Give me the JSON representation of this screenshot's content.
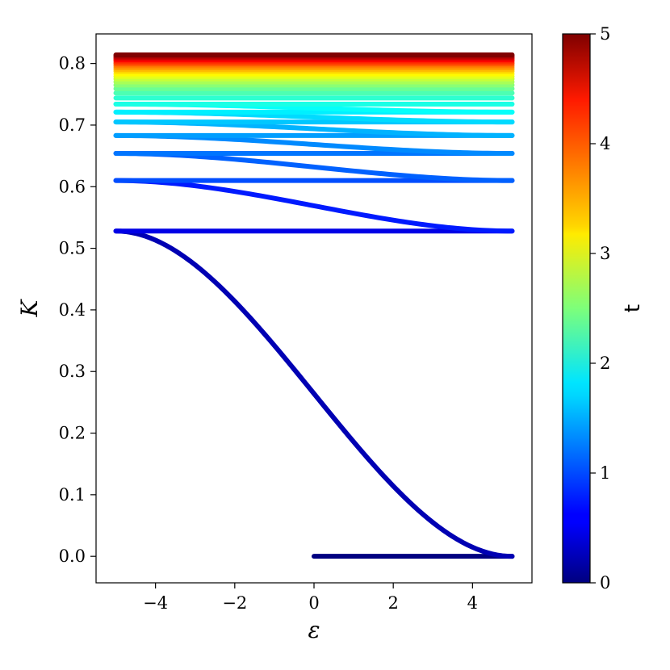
{
  "chart_data": {
    "type": "line",
    "xlabel": "ε",
    "ylabel": "K",
    "xlim": [
      -5.5,
      5.5
    ],
    "ylim": [
      -0.043,
      0.848
    ],
    "x_ticks": [
      -4,
      -2,
      0,
      2,
      4
    ],
    "x_tick_labels": [
      "−4",
      "−2",
      "0",
      "2",
      "4"
    ],
    "y_ticks": [
      0.0,
      0.1,
      0.2,
      0.3,
      0.4,
      0.5,
      0.6,
      0.7,
      0.8
    ],
    "y_tick_labels": [
      "0.0",
      "0.1",
      "0.2",
      "0.3",
      "0.4",
      "0.5",
      "0.6",
      "0.7",
      "0.8"
    ],
    "grid": false,
    "colormap": "jet",
    "colorbar": {
      "label": "t",
      "range": [
        0,
        5
      ],
      "ticks": [
        0,
        1,
        2,
        3,
        4,
        5
      ],
      "tick_labels": [
        "0",
        "1",
        "2",
        "3",
        "4",
        "5"
      ]
    },
    "series": [
      {
        "t": 0.0,
        "kind": "flat",
        "x": [
          0,
          5
        ],
        "y": [
          0.0,
          0.0
        ]
      },
      {
        "t": 0.25,
        "kind": "transition",
        "x_range": [
          -5,
          5
        ],
        "y_from": 0.528,
        "y_to": 0.0
      },
      {
        "t": 0.5,
        "kind": "flat",
        "x": [
          -5,
          5
        ],
        "y": [
          0.528,
          0.528
        ]
      },
      {
        "t": 0.75,
        "kind": "transition",
        "x_range": [
          -5,
          5
        ],
        "y_from": 0.61,
        "y_to": 0.528
      },
      {
        "t": 1.0,
        "kind": "flat",
        "x": [
          -5,
          5
        ],
        "y": [
          0.61,
          0.61
        ]
      },
      {
        "t": 1.1,
        "kind": "transition",
        "x_range": [
          -5,
          5
        ],
        "y_from": 0.654,
        "y_to": 0.61
      },
      {
        "t": 1.2,
        "kind": "flat",
        "x": [
          -5,
          5
        ],
        "y": [
          0.654,
          0.654
        ]
      },
      {
        "t": 1.3,
        "kind": "transition",
        "x_range": [
          -5,
          5
        ],
        "y_from": 0.683,
        "y_to": 0.654
      },
      {
        "t": 1.4,
        "kind": "flat",
        "x": [
          -5,
          5
        ],
        "y": [
          0.683,
          0.683
        ]
      },
      {
        "t": 1.5,
        "kind": "transition",
        "x_range": [
          -5,
          5
        ],
        "y_from": 0.705,
        "y_to": 0.683
      },
      {
        "t": 1.6,
        "kind": "flat",
        "x": [
          -5,
          5
        ],
        "y": [
          0.705,
          0.705
        ]
      },
      {
        "t": 1.7,
        "kind": "transition",
        "x_range": [
          -5,
          5
        ],
        "y_from": 0.721,
        "y_to": 0.705
      },
      {
        "t": 1.8,
        "kind": "flat",
        "x": [
          -5,
          5
        ],
        "y": [
          0.721,
          0.721
        ]
      },
      {
        "t": 1.9,
        "kind": "transition",
        "x_range": [
          -5,
          5
        ],
        "y_from": 0.734,
        "y_to": 0.721
      },
      {
        "t": 2.0,
        "kind": "flat",
        "x": [
          -5,
          5
        ],
        "y": [
          0.734,
          0.734
        ]
      },
      {
        "t": 2.1,
        "kind": "flat",
        "x": [
          -5,
          5
        ],
        "y": [
          0.744,
          0.744
        ]
      },
      {
        "t": 2.25,
        "kind": "flat",
        "x": [
          -5,
          5
        ],
        "y": [
          0.752,
          0.752
        ]
      },
      {
        "t": 2.4,
        "kind": "flat",
        "x": [
          -5,
          5
        ],
        "y": [
          0.759,
          0.759
        ]
      },
      {
        "t": 2.55,
        "kind": "flat",
        "x": [
          -5,
          5
        ],
        "y": [
          0.765,
          0.765
        ]
      },
      {
        "t": 2.7,
        "kind": "flat",
        "x": [
          -5,
          5
        ],
        "y": [
          0.77,
          0.77
        ]
      },
      {
        "t": 2.85,
        "kind": "flat",
        "x": [
          -5,
          5
        ],
        "y": [
          0.775,
          0.775
        ]
      },
      {
        "t": 3.0,
        "kind": "flat",
        "x": [
          -5,
          5
        ],
        "y": [
          0.779,
          0.779
        ]
      },
      {
        "t": 3.15,
        "kind": "flat",
        "x": [
          -5,
          5
        ],
        "y": [
          0.783,
          0.783
        ]
      },
      {
        "t": 3.3,
        "kind": "flat",
        "x": [
          -5,
          5
        ],
        "y": [
          0.787,
          0.787
        ]
      },
      {
        "t": 3.45,
        "kind": "flat",
        "x": [
          -5,
          5
        ],
        "y": [
          0.79,
          0.79
        ]
      },
      {
        "t": 3.6,
        "kind": "flat",
        "x": [
          -5,
          5
        ],
        "y": [
          0.793,
          0.793
        ]
      },
      {
        "t": 3.75,
        "kind": "flat",
        "x": [
          -5,
          5
        ],
        "y": [
          0.796,
          0.796
        ]
      },
      {
        "t": 3.9,
        "kind": "flat",
        "x": [
          -5,
          5
        ],
        "y": [
          0.799,
          0.799
        ]
      },
      {
        "t": 4.05,
        "kind": "flat",
        "x": [
          -5,
          5
        ],
        "y": [
          0.801,
          0.801
        ]
      },
      {
        "t": 4.2,
        "kind": "flat",
        "x": [
          -5,
          5
        ],
        "y": [
          0.804,
          0.804
        ]
      },
      {
        "t": 4.35,
        "kind": "flat",
        "x": [
          -5,
          5
        ],
        "y": [
          0.806,
          0.806
        ]
      },
      {
        "t": 4.5,
        "kind": "flat",
        "x": [
          -5,
          5
        ],
        "y": [
          0.808,
          0.808
        ]
      },
      {
        "t": 4.65,
        "kind": "flat",
        "x": [
          -5,
          5
        ],
        "y": [
          0.81,
          0.81
        ]
      },
      {
        "t": 4.8,
        "kind": "flat",
        "x": [
          -5,
          5
        ],
        "y": [
          0.812,
          0.812
        ]
      },
      {
        "t": 5.0,
        "kind": "flat",
        "x": [
          -5,
          5
        ],
        "y": [
          0.814,
          0.814
        ]
      }
    ]
  }
}
